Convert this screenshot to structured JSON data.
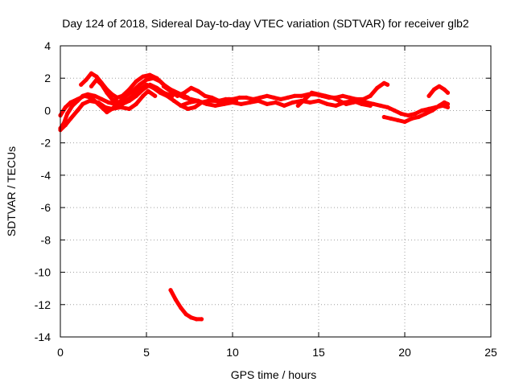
{
  "chart_data": {
    "type": "scatter",
    "title": "Day 124 of 2018, Sidereal Day-to-day VTEC variation (SDTVAR) for receiver glb2",
    "xlabel": "GPS time / hours",
    "ylabel": "SDTVAR / TECUs",
    "xlim": [
      0,
      25
    ],
    "ylim": [
      -14,
      4
    ],
    "xticks": [
      0,
      5,
      10,
      15,
      20,
      25
    ],
    "yticks": [
      -14,
      -12,
      -10,
      -8,
      -6,
      -4,
      -2,
      0,
      2,
      4
    ],
    "grid": true,
    "series_color": "#ff0000",
    "series": [
      {
        "name": "trace-1",
        "points": [
          [
            0.0,
            -1.1
          ],
          [
            0.2,
            -0.8
          ],
          [
            0.4,
            -0.2
          ],
          [
            0.7,
            0.3
          ],
          [
            1.0,
            0.6
          ],
          [
            1.3,
            0.9
          ],
          [
            1.6,
            1.0
          ],
          [
            2.0,
            0.9
          ],
          [
            2.4,
            0.7
          ],
          [
            2.8,
            0.5
          ],
          [
            3.2,
            0.4
          ],
          [
            3.6,
            0.4
          ],
          [
            4.0,
            0.6
          ],
          [
            4.4,
            0.9
          ],
          [
            4.8,
            1.3
          ],
          [
            5.2,
            1.6
          ],
          [
            5.6,
            1.4
          ],
          [
            6.0,
            1.1
          ],
          [
            6.5,
            0.9
          ]
        ]
      },
      {
        "name": "trace-2",
        "points": [
          [
            0.0,
            -1.2
          ],
          [
            0.3,
            -0.9
          ],
          [
            0.6,
            -0.5
          ],
          [
            1.0,
            0.0
          ],
          [
            1.3,
            0.4
          ],
          [
            1.7,
            0.6
          ],
          [
            2.2,
            0.5
          ],
          [
            2.6,
            0.2
          ],
          [
            3.0,
            0.1
          ],
          [
            3.5,
            0.2
          ],
          [
            4.0,
            0.1
          ],
          [
            4.4,
            0.4
          ],
          [
            4.8,
            0.9
          ],
          [
            5.1,
            1.2
          ],
          [
            5.5,
            0.9
          ]
        ]
      },
      {
        "name": "trace-3",
        "points": [
          [
            0.0,
            -0.3
          ],
          [
            0.3,
            0.2
          ],
          [
            0.6,
            0.5
          ],
          [
            1.0,
            0.7
          ],
          [
            1.4,
            0.9
          ],
          [
            1.8,
            0.8
          ],
          [
            2.2,
            0.4
          ],
          [
            2.5,
            0.1
          ],
          [
            2.7,
            -0.1
          ],
          [
            3.0,
            0.1
          ],
          [
            3.4,
            0.5
          ],
          [
            3.8,
            0.9
          ],
          [
            4.2,
            1.2
          ],
          [
            4.6,
            1.6
          ],
          [
            5.0,
            1.9
          ],
          [
            5.4,
            2.0
          ],
          [
            5.8,
            1.8
          ],
          [
            6.2,
            1.4
          ],
          [
            6.6,
            1.2
          ],
          [
            7.0,
            1.0
          ],
          [
            7.4,
            0.8
          ]
        ]
      },
      {
        "name": "trace-4",
        "points": [
          [
            1.2,
            1.6
          ],
          [
            1.5,
            1.9
          ],
          [
            1.8,
            2.3
          ],
          [
            2.1,
            2.1
          ],
          [
            2.4,
            1.7
          ],
          [
            2.7,
            1.3
          ],
          [
            3.0,
            1.0
          ],
          [
            3.3,
            0.8
          ],
          [
            3.6,
            0.9
          ],
          [
            4.0,
            1.3
          ],
          [
            4.4,
            1.8
          ],
          [
            4.8,
            2.1
          ],
          [
            5.2,
            2.2
          ],
          [
            5.6,
            2.0
          ],
          [
            6.0,
            1.6
          ],
          [
            6.4,
            1.3
          ],
          [
            6.8,
            1.0
          ],
          [
            7.2,
            0.8
          ],
          [
            7.6,
            0.7
          ],
          [
            8.0,
            0.6
          ]
        ]
      },
      {
        "name": "trace-5",
        "points": [
          [
            1.8,
            1.5
          ],
          [
            2.1,
            1.9
          ],
          [
            2.4,
            1.6
          ],
          [
            2.7,
            1.1
          ],
          [
            3.0,
            0.7
          ],
          [
            3.4,
            0.5
          ],
          [
            3.8,
            0.6
          ],
          [
            4.2,
            0.9
          ],
          [
            4.6,
            1.3
          ],
          [
            5.0,
            1.6
          ],
          [
            5.4,
            1.4
          ],
          [
            5.8,
            1.1
          ],
          [
            6.2,
            0.9
          ],
          [
            6.6,
            0.6
          ],
          [
            7.0,
            0.3
          ],
          [
            7.4,
            0.1
          ],
          [
            7.8,
            0.2
          ],
          [
            8.2,
            0.5
          ],
          [
            8.6,
            0.6
          ],
          [
            9.0,
            0.6
          ],
          [
            9.4,
            0.5
          ],
          [
            9.8,
            0.7
          ],
          [
            10.2,
            0.6
          ]
        ]
      },
      {
        "name": "trace-6",
        "points": [
          [
            6.0,
            1.5
          ],
          [
            6.4,
            1.2
          ],
          [
            6.8,
            0.9
          ],
          [
            7.2,
            1.1
          ],
          [
            7.6,
            1.4
          ],
          [
            8.0,
            1.2
          ],
          [
            8.4,
            0.9
          ],
          [
            8.8,
            0.8
          ],
          [
            9.2,
            0.6
          ],
          [
            9.6,
            0.7
          ],
          [
            10.0,
            0.7
          ],
          [
            10.4,
            0.8
          ],
          [
            10.8,
            0.8
          ],
          [
            11.2,
            0.7
          ],
          [
            11.6,
            0.8
          ],
          [
            12.0,
            0.9
          ],
          [
            12.4,
            0.8
          ],
          [
            12.8,
            0.7
          ],
          [
            13.2,
            0.8
          ],
          [
            13.6,
            0.9
          ],
          [
            14.0,
            0.9
          ],
          [
            14.4,
            1.0
          ],
          [
            14.8,
            1.0
          ],
          [
            15.2,
            0.9
          ],
          [
            15.6,
            0.8
          ],
          [
            16.0,
            0.8
          ],
          [
            16.4,
            0.9
          ],
          [
            16.8,
            0.8
          ],
          [
            17.2,
            0.7
          ],
          [
            17.6,
            0.7
          ],
          [
            18.0,
            0.9
          ],
          [
            18.4,
            1.4
          ],
          [
            18.8,
            1.7
          ],
          [
            19.0,
            1.6
          ]
        ]
      },
      {
        "name": "trace-7",
        "points": [
          [
            7.0,
            0.3
          ],
          [
            7.5,
            0.5
          ],
          [
            8.0,
            0.6
          ],
          [
            8.5,
            0.4
          ],
          [
            9.0,
            0.3
          ],
          [
            9.5,
            0.4
          ],
          [
            10.0,
            0.5
          ],
          [
            10.5,
            0.4
          ],
          [
            11.0,
            0.5
          ],
          [
            11.5,
            0.6
          ],
          [
            12.0,
            0.4
          ],
          [
            12.5,
            0.5
          ],
          [
            13.0,
            0.3
          ],
          [
            13.5,
            0.5
          ],
          [
            14.0,
            0.6
          ],
          [
            14.5,
            0.5
          ],
          [
            15.0,
            0.6
          ],
          [
            15.5,
            0.4
          ],
          [
            16.0,
            0.3
          ],
          [
            16.5,
            0.5
          ],
          [
            17.0,
            0.6
          ],
          [
            17.5,
            0.4
          ],
          [
            18.0,
            0.3
          ]
        ]
      },
      {
        "name": "trace-8",
        "points": [
          [
            13.8,
            0.3
          ],
          [
            14.2,
            0.7
          ],
          [
            14.6,
            1.1
          ],
          [
            15.0,
            1.0
          ],
          [
            15.4,
            0.9
          ],
          [
            15.8,
            0.8
          ],
          [
            16.2,
            0.6
          ],
          [
            16.6,
            0.4
          ],
          [
            17.0,
            0.5
          ],
          [
            17.4,
            0.6
          ],
          [
            17.8,
            0.5
          ],
          [
            18.2,
            0.4
          ],
          [
            18.6,
            0.3
          ],
          [
            19.0,
            0.2
          ],
          [
            19.4,
            0.0
          ],
          [
            19.8,
            -0.2
          ],
          [
            20.2,
            -0.3
          ],
          [
            20.6,
            -0.2
          ],
          [
            21.0,
            0.0
          ],
          [
            21.4,
            0.1
          ],
          [
            21.8,
            0.2
          ],
          [
            22.2,
            0.3
          ],
          [
            22.5,
            0.2
          ]
        ]
      },
      {
        "name": "trace-9",
        "points": [
          [
            18.8,
            -0.4
          ],
          [
            19.2,
            -0.5
          ],
          [
            19.6,
            -0.6
          ],
          [
            20.0,
            -0.7
          ],
          [
            20.4,
            -0.5
          ],
          [
            20.8,
            -0.4
          ],
          [
            21.2,
            -0.2
          ],
          [
            21.6,
            0.0
          ],
          [
            22.0,
            0.3
          ],
          [
            22.3,
            0.5
          ],
          [
            22.5,
            0.4
          ]
        ]
      },
      {
        "name": "trace-10",
        "points": [
          [
            21.4,
            0.9
          ],
          [
            21.7,
            1.3
          ],
          [
            22.0,
            1.5
          ],
          [
            22.3,
            1.3
          ],
          [
            22.5,
            1.1
          ]
        ]
      },
      {
        "name": "trace-11",
        "points": [
          [
            6.4,
            -11.1
          ],
          [
            6.7,
            -11.7
          ],
          [
            7.0,
            -12.2
          ],
          [
            7.3,
            -12.6
          ],
          [
            7.6,
            -12.8
          ],
          [
            7.9,
            -12.9
          ],
          [
            8.2,
            -12.9
          ]
        ]
      }
    ]
  }
}
